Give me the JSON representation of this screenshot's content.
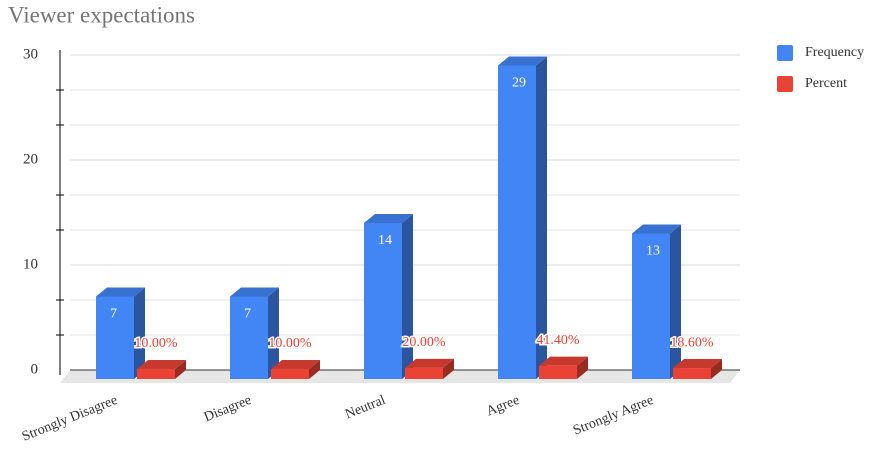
{
  "chart_data": {
    "type": "bar3d",
    "title": "Viewer expectations",
    "categories": [
      "Strongly Disagree",
      "Disagree",
      "Neutral",
      "Agree",
      "Strongly Agree"
    ],
    "series": [
      {
        "name": "Frequency",
        "color": "#4285f4",
        "values": [
          7,
          7,
          14,
          29,
          13
        ]
      },
      {
        "name": "Percent",
        "color": "#ea4335",
        "values": [
          0.1,
          0.1,
          0.2,
          0.414,
          0.186
        ],
        "value_labels": [
          "10.00%",
          "10.00%",
          "20.00%",
          "41.40%",
          "18.60%"
        ]
      }
    ],
    "ylim": [
      0,
      30
    ],
    "yticks": [
      0,
      10,
      20,
      30
    ],
    "grid": true,
    "minor_grid_divisions": 3,
    "legend": "right"
  }
}
